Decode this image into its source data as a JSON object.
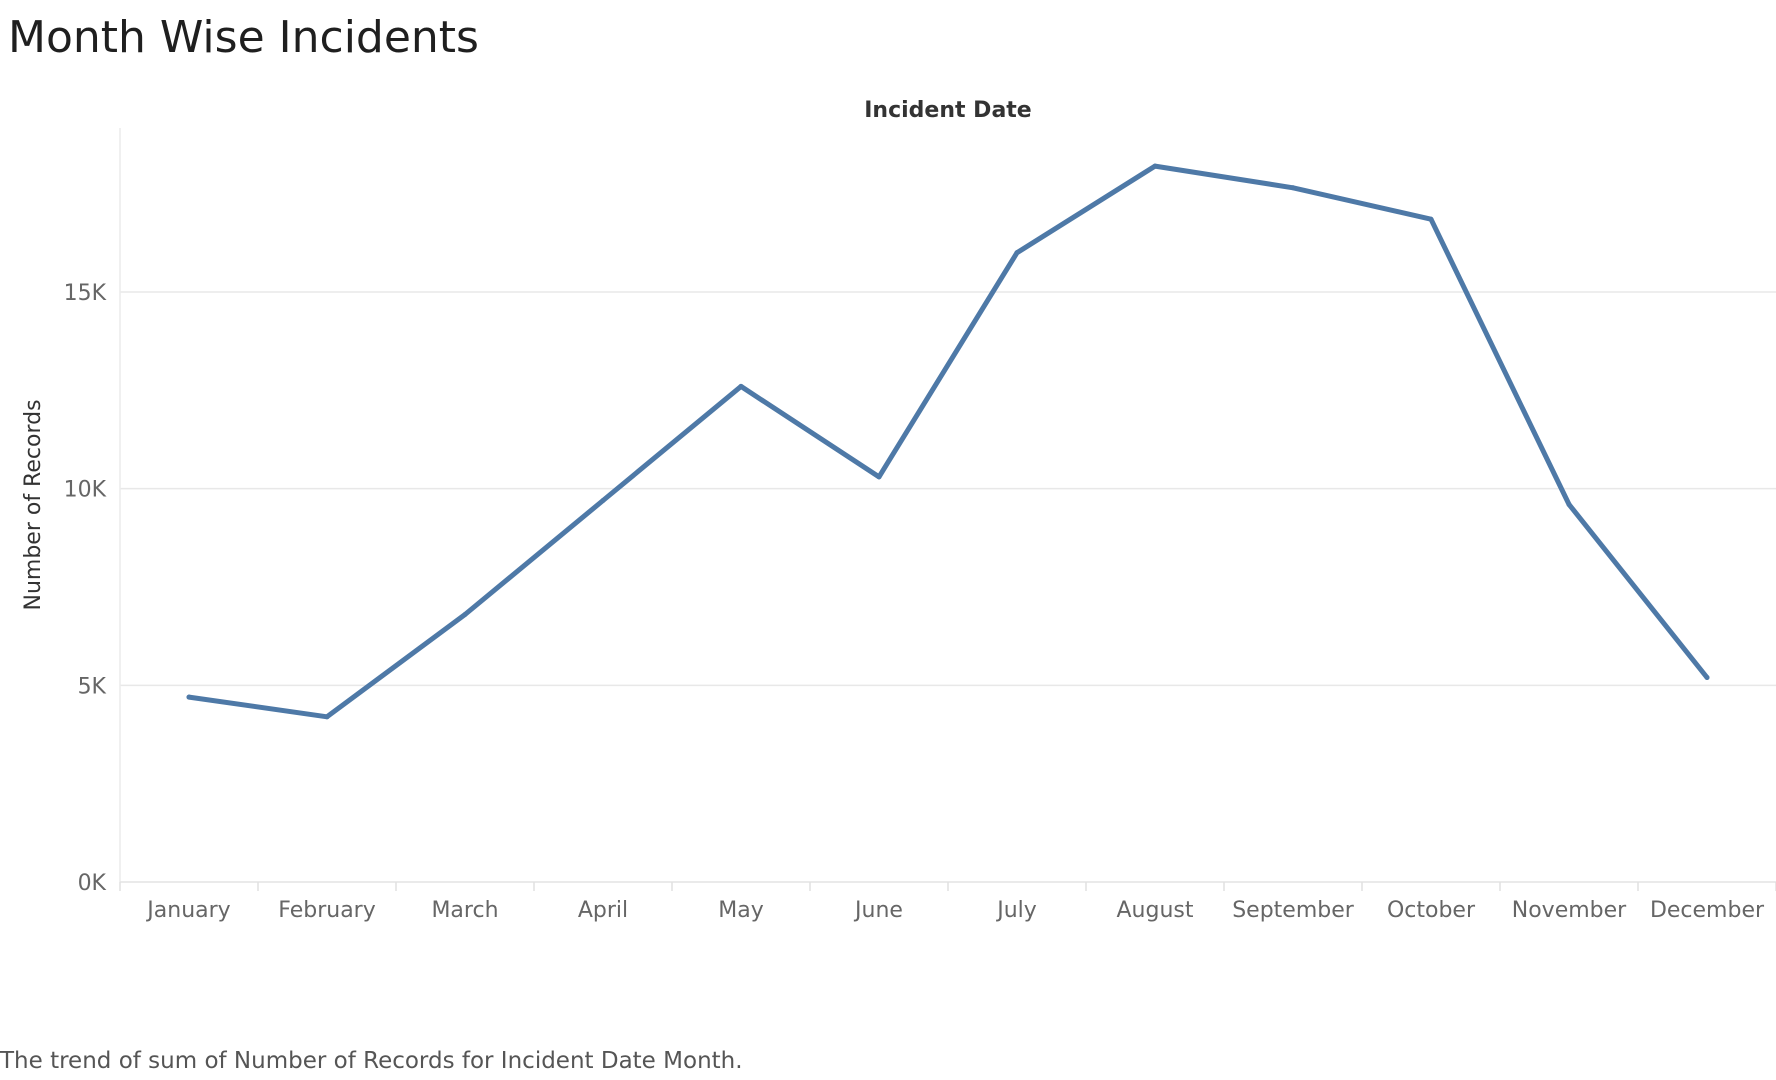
{
  "title": "Month Wise Incidents",
  "caption": "The trend of sum of Number of Records for Incident Date Month.",
  "chart_data": {
    "type": "line",
    "title": "Month Wise Incidents",
    "column_header": "Incident Date",
    "xlabel": "",
    "ylabel": "Number of Records",
    "categories": [
      "January",
      "February",
      "March",
      "April",
      "May",
      "June",
      "July",
      "August",
      "September",
      "October",
      "November",
      "December"
    ],
    "series": [
      {
        "values": [
          4700,
          4200,
          6800,
          9700,
          12600,
          10300,
          16000,
          18200,
          17650,
          16850,
          9600,
          5200
        ],
        "color": "#4e79a7"
      }
    ],
    "yticks": [
      0,
      5000,
      10000,
      15000
    ],
    "ytick_labels": [
      "0K",
      "5K",
      "10K",
      "15K"
    ],
    "ylim": [
      0,
      19000
    ],
    "grid": "horizontal",
    "legend": "none"
  }
}
